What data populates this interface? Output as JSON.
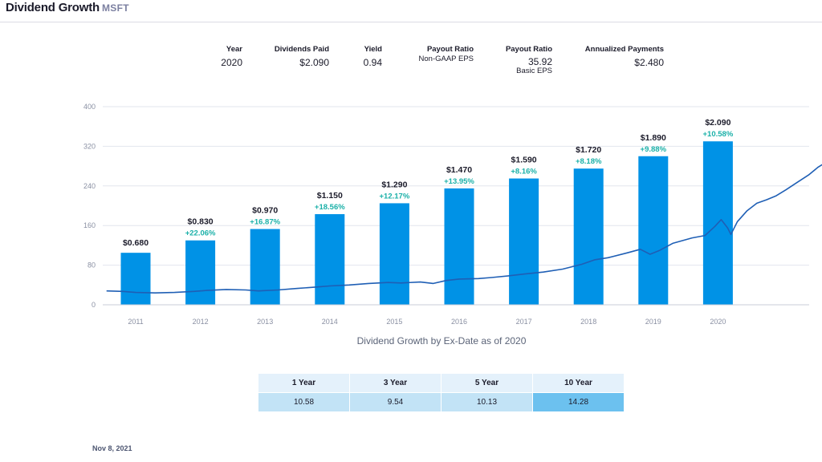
{
  "header": {
    "title": "Dividend Growth",
    "ticker": "MSFT"
  },
  "stats": {
    "year_label": "Year",
    "year_value": "2020",
    "dividends_label": "Dividends Paid",
    "dividends_value": "$2.090",
    "yield_label": "Yield",
    "yield_value": "0.94",
    "payout_nongaap_label": "Payout Ratio",
    "payout_nongaap_sub": "Non-GAAP EPS",
    "payout_basic_label": "Payout Ratio",
    "payout_basic_value": "35.92",
    "payout_basic_sub": "Basic EPS",
    "annualized_label": "Annualized Payments",
    "annualized_value": "$2.480"
  },
  "chart_data": {
    "type": "bar",
    "categories": [
      "2011",
      "2012",
      "2013",
      "2014",
      "2015",
      "2016",
      "2017",
      "2018",
      "2019",
      "2020"
    ],
    "bar_labels": [
      "$0.680",
      "$0.830",
      "$0.970",
      "$1.150",
      "$1.290",
      "$1.470",
      "$1.590",
      "$1.720",
      "$1.890",
      "$2.090"
    ],
    "growth_labels": [
      "",
      "+22.06%",
      "+16.87%",
      "+18.56%",
      "+12.17%",
      "+13.95%",
      "+8.16%",
      "+8.18%",
      "+9.88%",
      "+10.58%"
    ],
    "values": [
      105,
      130,
      153,
      183,
      205,
      235,
      255,
      275,
      300,
      330
    ],
    "ylim": [
      0,
      400
    ],
    "yticks": [
      0,
      80,
      160,
      240,
      320,
      400
    ],
    "price_series": [
      [
        2010.55,
        28
      ],
      [
        2010.8,
        27
      ],
      [
        2011.0,
        25
      ],
      [
        2011.3,
        24
      ],
      [
        2011.6,
        25
      ],
      [
        2011.9,
        27
      ],
      [
        2012.1,
        29
      ],
      [
        2012.4,
        31
      ],
      [
        2012.7,
        30
      ],
      [
        2012.9,
        28
      ],
      [
        2013.2,
        30
      ],
      [
        2013.5,
        33
      ],
      [
        2013.8,
        36
      ],
      [
        2014.0,
        38
      ],
      [
        2014.3,
        40
      ],
      [
        2014.6,
        43
      ],
      [
        2014.9,
        45
      ],
      [
        2015.1,
        44
      ],
      [
        2015.4,
        46
      ],
      [
        2015.6,
        43
      ],
      [
        2015.8,
        49
      ],
      [
        2016.0,
        52
      ],
      [
        2016.3,
        53
      ],
      [
        2016.5,
        55
      ],
      [
        2016.8,
        59
      ],
      [
        2017.0,
        62
      ],
      [
        2017.3,
        66
      ],
      [
        2017.6,
        72
      ],
      [
        2017.9,
        82
      ],
      [
        2018.1,
        91
      ],
      [
        2018.3,
        95
      ],
      [
        2018.6,
        105
      ],
      [
        2018.8,
        112
      ],
      [
        2018.95,
        102
      ],
      [
        2019.1,
        110
      ],
      [
        2019.3,
        124
      ],
      [
        2019.6,
        135
      ],
      [
        2019.8,
        140
      ],
      [
        2019.95,
        158
      ],
      [
        2020.05,
        172
      ],
      [
        2020.15,
        155
      ],
      [
        2020.2,
        142
      ],
      [
        2020.3,
        168
      ],
      [
        2020.45,
        190
      ],
      [
        2020.6,
        205
      ],
      [
        2020.75,
        212
      ],
      [
        2020.9,
        220
      ],
      [
        2021.05,
        232
      ],
      [
        2021.2,
        245
      ],
      [
        2021.4,
        262
      ],
      [
        2021.55,
        278
      ],
      [
        2021.7,
        290
      ],
      [
        2021.78,
        282
      ],
      [
        2021.85,
        300
      ],
      [
        2021.9,
        330
      ]
    ]
  },
  "caption": "Dividend Growth by Ex-Date as of 2020",
  "growth_table": {
    "headers": [
      "1 Year",
      "3 Year",
      "5 Year",
      "10 Year"
    ],
    "values": [
      "10.58",
      "9.54",
      "10.13",
      "14.28"
    ]
  },
  "date_stamp": "Nov 8, 2021",
  "colors": {
    "bar": "#0092e6",
    "line": "#1f5fb5",
    "growth_text": "#1ab0a8",
    "grid": "#e2e6ee",
    "axis_text": "#8a90a3"
  }
}
